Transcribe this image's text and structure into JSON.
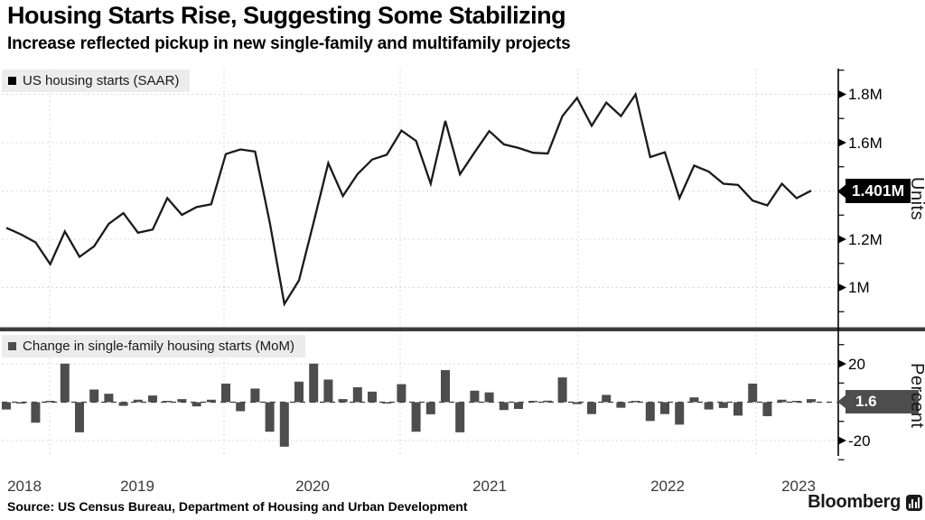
{
  "header": {
    "title": "Housing Starts Rise, Suggesting Some Stabilizing",
    "subtitle": "Increase reflected pickup in new single-family and multifamily projects"
  },
  "top_panel": {
    "legend": {
      "swatch_color": "#000000",
      "label": "US housing starts (SAAR)"
    },
    "axis": {
      "unit_label": "Units",
      "ticks": [
        {
          "label": "1.8M",
          "value": 1.8
        },
        {
          "label": "1.6M",
          "value": 1.6
        },
        {
          "label": "1.2M",
          "value": 1.2
        },
        {
          "label": "1M",
          "value": 1.0
        }
      ],
      "callout": {
        "label": "1.401M",
        "value": 1.401,
        "color": "#000000"
      }
    }
  },
  "bottom_panel": {
    "legend": {
      "swatch_color": "#4d4d4d",
      "label": "Change in single-family housing starts (MoM)"
    },
    "axis": {
      "unit_label": "Percent",
      "ticks": [
        {
          "label": "20",
          "value": 20
        },
        {
          "label": "-20",
          "value": -20
        }
      ],
      "callout": {
        "label": "1.6",
        "value": 1.6,
        "color": "#4d4d4d"
      }
    }
  },
  "x_axis": {
    "years": [
      "2018",
      "2019",
      "2020",
      "2021",
      "2022",
      "2023"
    ]
  },
  "footer": {
    "source": "Source: US Census Bureau, Department of Housing and Urban Development",
    "brand": "Bloomberg"
  },
  "colors": {
    "line": "#1a1a1a",
    "bar": "#4d4d4d",
    "grid": "#d8d8d8",
    "zero_line": "#3d3d3d",
    "divider": "#3c3c3c",
    "axis": "#000000",
    "legend_bg": "#ececec"
  },
  "chart_data": [
    {
      "type": "line",
      "title": "US housing starts (SAAR)",
      "ylabel": "Units",
      "unit": "millions of units, seasonally adjusted annual rate",
      "legend_position": "top-left",
      "grid": true,
      "ylim": [
        0.9,
        1.9
      ],
      "yticks": [
        1.0,
        1.2,
        1.4,
        1.6,
        1.8
      ],
      "yticks_minor": [
        0.9,
        1.1,
        1.3,
        1.5,
        1.7,
        1.9
      ],
      "last_value_label": "1.401M",
      "x": [
        "Sep 2018",
        "Oct 2018",
        "Nov 2018",
        "Dec 2018",
        "Jan 2019",
        "Feb 2019",
        "Mar 2019",
        "Apr 2019",
        "May 2019",
        "Jun 2019",
        "Jul 2019",
        "Aug 2019",
        "Sep 2019",
        "Oct 2019",
        "Nov 2019",
        "Dec 2019",
        "Jan 2020",
        "Feb 2020",
        "Mar 2020",
        "Apr 2020",
        "May 2020",
        "Jun 2020",
        "Jul 2020",
        "Aug 2020",
        "Sep 2020",
        "Oct 2020",
        "Nov 2020",
        "Dec 2020",
        "Jan 2021",
        "Feb 2021",
        "Mar 2021",
        "Apr 2021",
        "May 2021",
        "Jun 2021",
        "Jul 2021",
        "Aug 2021",
        "Sep 2021",
        "Oct 2021",
        "Nov 2021",
        "Dec 2021",
        "Jan 2022",
        "Feb 2022",
        "Mar 2022",
        "Apr 2022",
        "May 2022",
        "Jun 2022",
        "Jul 2022",
        "Aug 2022",
        "Sep 2022",
        "Oct 2022",
        "Nov 2022",
        "Dec 2022",
        "Jan 2023",
        "Feb 2023",
        "Mar 2023",
        "Apr 2023"
      ],
      "values": [
        1.247,
        1.22,
        1.187,
        1.097,
        1.232,
        1.127,
        1.171,
        1.264,
        1.308,
        1.227,
        1.24,
        1.37,
        1.301,
        1.333,
        1.345,
        1.553,
        1.572,
        1.563,
        1.27,
        0.932,
        1.03,
        1.27,
        1.515,
        1.379,
        1.47,
        1.53,
        1.55,
        1.65,
        1.607,
        1.43,
        1.69,
        1.469,
        1.56,
        1.648,
        1.593,
        1.578,
        1.558,
        1.555,
        1.71,
        1.785,
        1.67,
        1.766,
        1.71,
        1.8,
        1.54,
        1.56,
        1.37,
        1.505,
        1.48,
        1.43,
        1.425,
        1.36,
        1.34,
        1.43,
        1.37,
        1.401
      ]
    },
    {
      "type": "bar",
      "title": "Change in single-family housing starts (MoM)",
      "ylabel": "Percent",
      "unit": "percent, month over month",
      "legend_position": "top-left",
      "grid": true,
      "ylim": [
        -30,
        30
      ],
      "yticks": [
        -20,
        20
      ],
      "yticks_minor": [
        -30,
        -10,
        10,
        30
      ],
      "last_value_label": "1.6",
      "x": [
        "Sep 2018",
        "Oct 2018",
        "Nov 2018",
        "Dec 2018",
        "Jan 2019",
        "Feb 2019",
        "Mar 2019",
        "Apr 2019",
        "May 2019",
        "Jun 2019",
        "Jul 2019",
        "Aug 2019",
        "Sep 2019",
        "Oct 2019",
        "Nov 2019",
        "Dec 2019",
        "Jan 2020",
        "Feb 2020",
        "Mar 2020",
        "Apr 2020",
        "May 2020",
        "Jun 2020",
        "Jul 2020",
        "Aug 2020",
        "Sep 2020",
        "Oct 2020",
        "Nov 2020",
        "Dec 2020",
        "Jan 2021",
        "Feb 2021",
        "Mar 2021",
        "Apr 2021",
        "May 2021",
        "Jun 2021",
        "Jul 2021",
        "Aug 2021",
        "Sep 2021",
        "Oct 2021",
        "Nov 2021",
        "Dec 2021",
        "Jan 2022",
        "Feb 2022",
        "Mar 2022",
        "Apr 2022",
        "May 2022",
        "Jun 2022",
        "Jul 2022",
        "Aug 2022",
        "Sep 2022",
        "Oct 2022",
        "Nov 2022",
        "Dec 2022",
        "Jan 2023",
        "Feb 2023",
        "Mar 2023",
        "Apr 2023"
      ],
      "values": [
        -3.8,
        -0.5,
        -10.7,
        0.5,
        20.1,
        -15.7,
        6.6,
        4.4,
        -1.9,
        1.3,
        3.5,
        0.6,
        1.6,
        -2.2,
        1.3,
        9.7,
        -4.7,
        7.1,
        -15.4,
        -23.2,
        10.7,
        20.1,
        11.8,
        1.6,
        7.8,
        5.5,
        -0.6,
        9.4,
        -15.4,
        -6.3,
        16.7,
        -15.7,
        6.0,
        5.1,
        -4.1,
        -3.5,
        0.3,
        0.8,
        12.9,
        -1.0,
        -6.2,
        3.8,
        -2.9,
        0.3,
        -9.8,
        -6.2,
        -11.7,
        2.5,
        -3.8,
        -3.0,
        -7.0,
        9.7,
        -7.3,
        1.3,
        0.2,
        1.6
      ]
    }
  ]
}
